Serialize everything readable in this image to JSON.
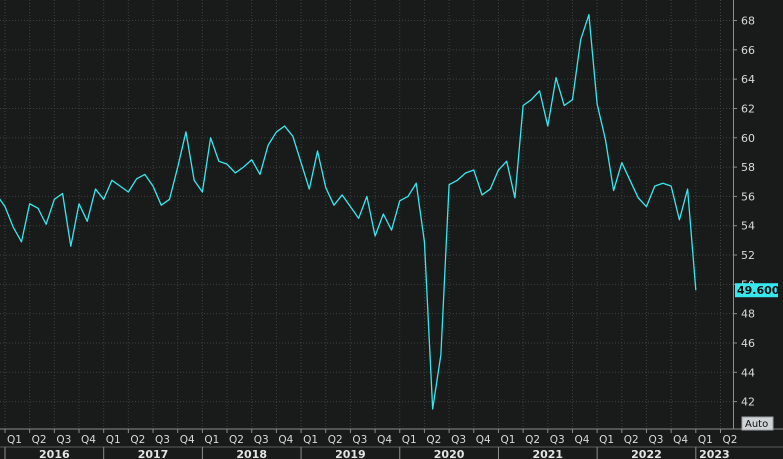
{
  "chart_data": {
    "type": "line",
    "x_start": "2015-12",
    "x_end": "2023-05",
    "ylim": [
      40.2,
      69.4
    ],
    "y_ticks": [
      42,
      44,
      46,
      48,
      50,
      52,
      54,
      56,
      58,
      60,
      62,
      64,
      66,
      68
    ],
    "grid": true,
    "line_color": "#36e8ee",
    "quarters": [
      {
        "label": "Q1",
        "date": "2016-01"
      },
      {
        "label": "Q2",
        "date": "2016-04"
      },
      {
        "label": "Q3",
        "date": "2016-07"
      },
      {
        "label": "Q4",
        "date": "2016-10"
      },
      {
        "label": "Q1",
        "date": "2017-01"
      },
      {
        "label": "Q2",
        "date": "2017-04"
      },
      {
        "label": "Q3",
        "date": "2017-07"
      },
      {
        "label": "Q4",
        "date": "2017-10"
      },
      {
        "label": "Q1",
        "date": "2018-01"
      },
      {
        "label": "Q2",
        "date": "2018-04"
      },
      {
        "label": "Q3",
        "date": "2018-07"
      },
      {
        "label": "Q4",
        "date": "2018-10"
      },
      {
        "label": "Q1",
        "date": "2019-01"
      },
      {
        "label": "Q2",
        "date": "2019-04"
      },
      {
        "label": "Q3",
        "date": "2019-07"
      },
      {
        "label": "Q4",
        "date": "2019-10"
      },
      {
        "label": "Q1",
        "date": "2020-01"
      },
      {
        "label": "Q2",
        "date": "2020-04"
      },
      {
        "label": "Q3",
        "date": "2020-07"
      },
      {
        "label": "Q4",
        "date": "2020-10"
      },
      {
        "label": "Q1",
        "date": "2021-01"
      },
      {
        "label": "Q2",
        "date": "2021-04"
      },
      {
        "label": "Q3",
        "date": "2021-07"
      },
      {
        "label": "Q4",
        "date": "2021-10"
      },
      {
        "label": "Q1",
        "date": "2022-01"
      },
      {
        "label": "Q2",
        "date": "2022-04"
      },
      {
        "label": "Q3",
        "date": "2022-07"
      },
      {
        "label": "Q4",
        "date": "2022-10"
      },
      {
        "label": "Q1",
        "date": "2023-01"
      },
      {
        "label": "Q2",
        "date": "2023-04"
      }
    ],
    "years": [
      {
        "label": "2016",
        "start": "2016-01",
        "end": "2016-12"
      },
      {
        "label": "2017",
        "start": "2017-01",
        "end": "2017-12"
      },
      {
        "label": "2018",
        "start": "2018-01",
        "end": "2018-12"
      },
      {
        "label": "2019",
        "start": "2019-01",
        "end": "2019-12"
      },
      {
        "label": "2020",
        "start": "2020-01",
        "end": "2020-12"
      },
      {
        "label": "2021",
        "start": "2021-01",
        "end": "2021-12"
      },
      {
        "label": "2022",
        "start": "2022-01",
        "end": "2022-12"
      },
      {
        "label": "2023",
        "start": "2023-01",
        "end": "2023-05"
      }
    ],
    "series": [
      {
        "values": [
          [
            "2015-12",
            56.1
          ],
          [
            "2016-01",
            55.3
          ],
          [
            "2016-02",
            53.9
          ],
          [
            "2016-03",
            52.9
          ],
          [
            "2016-04",
            55.5
          ],
          [
            "2016-05",
            55.2
          ],
          [
            "2016-06",
            54.1
          ],
          [
            "2016-07",
            55.8
          ],
          [
            "2016-08",
            56.2
          ],
          [
            "2016-09",
            52.6
          ],
          [
            "2016-10",
            55.5
          ],
          [
            "2016-11",
            54.3
          ],
          [
            "2016-12",
            56.5
          ],
          [
            "2017-01",
            55.8
          ],
          [
            "2017-02",
            57.1
          ],
          [
            "2017-03",
            56.7
          ],
          [
            "2017-04",
            56.3
          ],
          [
            "2017-05",
            57.2
          ],
          [
            "2017-06",
            57.5
          ],
          [
            "2017-07",
            56.7
          ],
          [
            "2017-08",
            55.4
          ],
          [
            "2017-09",
            55.8
          ],
          [
            "2017-10",
            58.0
          ],
          [
            "2017-11",
            60.4
          ],
          [
            "2017-12",
            57.1
          ],
          [
            "2018-01",
            56.3
          ],
          [
            "2018-02",
            60.0
          ],
          [
            "2018-03",
            58.4
          ],
          [
            "2018-04",
            58.2
          ],
          [
            "2018-05",
            57.6
          ],
          [
            "2018-06",
            58.0
          ],
          [
            "2018-07",
            58.5
          ],
          [
            "2018-08",
            57.5
          ],
          [
            "2018-09",
            59.5
          ],
          [
            "2018-10",
            60.4
          ],
          [
            "2018-11",
            60.8
          ],
          [
            "2018-12",
            60.1
          ],
          [
            "2019-01",
            58.3
          ],
          [
            "2019-02",
            56.5
          ],
          [
            "2019-03",
            59.1
          ],
          [
            "2019-04",
            56.6
          ],
          [
            "2019-05",
            55.4
          ],
          [
            "2019-06",
            56.1
          ],
          [
            "2019-07",
            55.3
          ],
          [
            "2019-08",
            54.5
          ],
          [
            "2019-09",
            56.0
          ],
          [
            "2019-10",
            53.3
          ],
          [
            "2019-11",
            54.8
          ],
          [
            "2019-12",
            53.7
          ],
          [
            "2020-01",
            55.7
          ],
          [
            "2020-02",
            56.0
          ],
          [
            "2020-03",
            56.9
          ],
          [
            "2020-04",
            52.9
          ],
          [
            "2020-05",
            41.5
          ],
          [
            "2020-06",
            45.2
          ],
          [
            "2020-07",
            56.8
          ],
          [
            "2020-08",
            57.1
          ],
          [
            "2020-09",
            57.6
          ],
          [
            "2020-10",
            57.8
          ],
          [
            "2020-11",
            56.1
          ],
          [
            "2020-12",
            56.5
          ],
          [
            "2021-01",
            57.8
          ],
          [
            "2021-02",
            58.4
          ],
          [
            "2021-03",
            55.9
          ],
          [
            "2021-04",
            62.2
          ],
          [
            "2021-05",
            62.6
          ],
          [
            "2021-06",
            63.2
          ],
          [
            "2021-07",
            60.8
          ],
          [
            "2021-08",
            64.1
          ],
          [
            "2021-09",
            62.2
          ],
          [
            "2021-10",
            62.6
          ],
          [
            "2021-11",
            66.7
          ],
          [
            "2021-12",
            68.4
          ],
          [
            "2022-01",
            62.3
          ],
          [
            "2022-02",
            59.9
          ],
          [
            "2022-03",
            56.4
          ],
          [
            "2022-04",
            58.3
          ],
          [
            "2022-05",
            57.1
          ],
          [
            "2022-06",
            55.9
          ],
          [
            "2022-07",
            55.3
          ],
          [
            "2022-08",
            56.7
          ],
          [
            "2022-09",
            56.9
          ],
          [
            "2022-10",
            56.7
          ],
          [
            "2022-11",
            54.4
          ],
          [
            "2022-12",
            56.5
          ],
          [
            "2023-01",
            49.6
          ]
        ]
      }
    ],
    "last_value_label": "49.600",
    "last_value": 49.6,
    "auto_label": "Auto"
  }
}
